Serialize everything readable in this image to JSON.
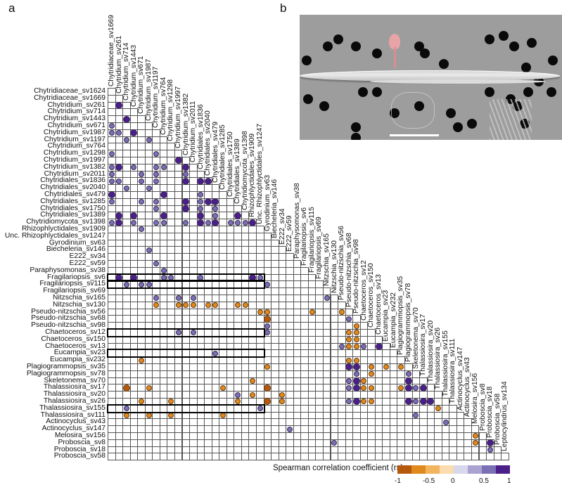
{
  "panels": {
    "a": "a",
    "b": "b"
  },
  "chart_data": {
    "type": "heatmap",
    "title": "",
    "subtype": "lower-triangular correlation matrix (circles)",
    "legend": {
      "title": "Spearman correlation coefficient (rs)",
      "ticks": [
        "-1",
        "-0.5",
        "0",
        "0.5",
        "1"
      ],
      "colors": [
        "#b5590f",
        "#e08a1e",
        "#f2b45c",
        "#fbdcae",
        "#d8d8ec",
        "#aaa3d2",
        "#7b6fb5",
        "#4a1f8a"
      ],
      "range": [
        -1,
        1
      ],
      "position": "bottom-right"
    },
    "rows": [
      "Chytridiaceae_sv1624",
      "Chytridiaceae_sv1669",
      "Chytridium_sv261",
      "Chytridium_sv714",
      "Chytridium_sv1443",
      "Chytridium_sv671",
      "Chytridium_sv1987",
      "Chytridium_sv1197",
      "Chytridium_sv764",
      "Chytridium_sv1298",
      "Chytridium_sv1997",
      "Chytridium_sv1382",
      "Chytridium_sv2011",
      "Chytridiales_sv1836",
      "Chytridiales_sv2040",
      "Chytridiales_sv479",
      "Chytridiales_sv1285",
      "Chytridiales_sv1750",
      "Chytridiales_sv1389",
      "Chytridiomycota_sv1398",
      "Rhizophlyctidales_sv1909",
      "Unc. Rhizophlyctidales_sv1247",
      "Gyrodinium_sv63",
      "Biecheleria_sv146",
      "E222_sv34",
      "E222_sv59",
      "Paraphysomonas_sv38",
      "Fragilariopsis_sv6",
      "Fragilariopsis_sv115",
      "Fragilariopsis_sv69",
      "Nitzschia_sv165",
      "Nitzschia_sv130",
      "Pseudo-nitzschia_sv56",
      "Pseudo-nitzschia_sv68",
      "Pseudo-nitzschia_sv98",
      "Chaetoceros_sv12",
      "Chaetoceros_sv150",
      "Chaetoceros_sv13",
      "Eucampia_sv23",
      "Eucampia_sv232",
      "Plagiogrammopsis_sv35",
      "Plagiogrammopsis_sv78",
      "Skeletonema_sv70",
      "Thalassiosira_sv17",
      "Thalassiosira_sv20",
      "Thalassiosira_sv26",
      "Thalassiosira_sv155",
      "Thalassiosira_sv111",
      "Actinocyclus_sv43",
      "Actinocyclus_sv147",
      "Melosira_sv156",
      "Proboscia_sv8",
      "Proboscia_sv18",
      "Proboscia_sv58"
    ],
    "columns": [
      "Chytridiaceae_sv1669",
      "Chytridium_sv261",
      "Chytridium_sv714",
      "Chytridium_sv1443",
      "Chytridium_sv671",
      "Chytridium_sv1987",
      "Chytridium_sv1197",
      "Chytridium_sv764",
      "Chytridium_sv1298",
      "Chytridium_sv1997",
      "Chytridium_sv1382",
      "Chytridium_sv2011",
      "Chytridiales_sv1836",
      "Chytridiales_sv2040",
      "Chytridiales_sv479",
      "Chytridiales_sv1285",
      "Chytridiales_sv1750",
      "Chytridiales_sv1389",
      "Chytridiomycota_sv1398",
      "Rhizophlyctidales_sv1909",
      "Unc. Rhizophlyctidales_sv1247",
      "Gyrodinium_sv63",
      "Biecheleria_sv146",
      "E222_sv34",
      "E222_sv59",
      "Paraphysomonas_sv38",
      "Fragilariopsis_sv6",
      "Fragilariopsis_sv115",
      "Fragilariopsis_sv69",
      "Nitzschia_sv165",
      "Nitzschia_sv130",
      "Pseudo-nitzschia_sv56",
      "Pseudo-nitzschia_sv68",
      "Pseudo-nitzschia_sv98",
      "Chaetoceros_sv12",
      "Chaetoceros_sv150",
      "Chaetoceros_sv13",
      "Eucampia_sv23",
      "Eucampia_sv232",
      "Plagiogrammopsis_sv35",
      "Plagiogrammopsis_sv78",
      "Skeletonema_sv70",
      "Thalassiosira_sv17",
      "Thalassiosira_sv20",
      "Thalassiosira_sv26",
      "Thalassiosira_sv155",
      "Thalassiosira_sv111",
      "Actinocyclus_sv147",
      "Actinocyclus_sv43",
      "Melosira_sv156",
      "Proboscia_sv8",
      "Proboscia_sv18",
      "Proboscia_sv58",
      "Leptocylindrus_sv134"
    ],
    "highlighted_rows": [
      "Fragilariopsis_sv6",
      "Fragilariopsis_sv115",
      "Chaetoceros_sv12",
      "Eucampia_sv23",
      "Thalassiosira_sv155"
    ],
    "points": [
      {
        "r": 2,
        "c": 1,
        "v": 0.9
      },
      {
        "r": 4,
        "c": 2,
        "v": 0.9
      },
      {
        "r": 5,
        "c": 0,
        "v": 0.6
      },
      {
        "r": 6,
        "c": 0,
        "v": 0.6
      },
      {
        "r": 6,
        "c": 1,
        "v": 0.6
      },
      {
        "r": 6,
        "c": 3,
        "v": 0.9
      },
      {
        "r": 7,
        "c": 2,
        "v": 0.6
      },
      {
        "r": 7,
        "c": 5,
        "v": 0.6
      },
      {
        "r": 9,
        "c": 0,
        "v": 0.6
      },
      {
        "r": 9,
        "c": 6,
        "v": 0.6
      },
      {
        "r": 10,
        "c": 9,
        "v": 0.9
      },
      {
        "r": 11,
        "c": 0,
        "v": 0.6
      },
      {
        "r": 11,
        "c": 1,
        "v": 0.9
      },
      {
        "r": 11,
        "c": 3,
        "v": 0.6
      },
      {
        "r": 11,
        "c": 6,
        "v": 0.6
      },
      {
        "r": 11,
        "c": 7,
        "v": 0.6
      },
      {
        "r": 11,
        "c": 10,
        "v": 0.9
      },
      {
        "r": 12,
        "c": 0,
        "v": 0.6
      },
      {
        "r": 12,
        "c": 4,
        "v": 0.6
      },
      {
        "r": 12,
        "c": 6,
        "v": 0.6
      },
      {
        "r": 12,
        "c": 10,
        "v": 0.6
      },
      {
        "r": 13,
        "c": 0,
        "v": 0.6
      },
      {
        "r": 13,
        "c": 1,
        "v": 0.6
      },
      {
        "r": 13,
        "c": 4,
        "v": 0.6
      },
      {
        "r": 13,
        "c": 6,
        "v": 0.6
      },
      {
        "r": 13,
        "c": 10,
        "v": 0.9
      },
      {
        "r": 13,
        "c": 12,
        "v": 0.9
      },
      {
        "r": 13,
        "c": 13,
        "v": 0.9
      },
      {
        "r": 14,
        "c": 2,
        "v": 0.6
      },
      {
        "r": 14,
        "c": 5,
        "v": 0.6
      },
      {
        "r": 15,
        "c": 0,
        "v": 0.9
      },
      {
        "r": 15,
        "c": 7,
        "v": 0.9
      },
      {
        "r": 15,
        "c": 12,
        "v": 0.6
      },
      {
        "r": 16,
        "c": 0,
        "v": 0.6
      },
      {
        "r": 16,
        "c": 4,
        "v": 0.6
      },
      {
        "r": 16,
        "c": 6,
        "v": 0.6
      },
      {
        "r": 16,
        "c": 10,
        "v": 0.9
      },
      {
        "r": 16,
        "c": 12,
        "v": 0.6
      },
      {
        "r": 16,
        "c": 13,
        "v": 0.9
      },
      {
        "r": 16,
        "c": 14,
        "v": 0.9
      },
      {
        "r": 17,
        "c": 6,
        "v": 0.6
      },
      {
        "r": 17,
        "c": 10,
        "v": 0.9
      },
      {
        "r": 17,
        "c": 12,
        "v": 0.6
      },
      {
        "r": 17,
        "c": 14,
        "v": 0.6
      },
      {
        "r": 18,
        "c": 1,
        "v": 0.9
      },
      {
        "r": 18,
        "c": 3,
        "v": 0.9
      },
      {
        "r": 18,
        "c": 7,
        "v": 0.9
      },
      {
        "r": 18,
        "c": 12,
        "v": 0.9
      },
      {
        "r": 18,
        "c": 14,
        "v": 0.6
      },
      {
        "r": 18,
        "c": 17,
        "v": 0.9
      },
      {
        "r": 19,
        "c": 0,
        "v": 0.6
      },
      {
        "r": 19,
        "c": 1,
        "v": 0.9
      },
      {
        "r": 19,
        "c": 3,
        "v": 0.6
      },
      {
        "r": 19,
        "c": 6,
        "v": 0.6
      },
      {
        "r": 19,
        "c": 7,
        "v": 0.6
      },
      {
        "r": 19,
        "c": 10,
        "v": 0.6
      },
      {
        "r": 19,
        "c": 12,
        "v": 0.9
      },
      {
        "r": 19,
        "c": 13,
        "v": 0.6
      },
      {
        "r": 19,
        "c": 14,
        "v": 0.9
      },
      {
        "r": 19,
        "c": 16,
        "v": 0.6
      },
      {
        "r": 19,
        "c": 17,
        "v": 0.6
      },
      {
        "r": 19,
        "c": 18,
        "v": 0.6
      },
      {
        "r": 19,
        "c": 19,
        "v": 0.9
      },
      {
        "r": 20,
        "c": 4,
        "v": 0.6
      },
      {
        "r": 23,
        "c": 5,
        "v": 0.6
      },
      {
        "r": 25,
        "c": 6,
        "v": 0.6
      },
      {
        "r": 26,
        "c": 7,
        "v": 0.6
      },
      {
        "r": 27,
        "c": 1,
        "v": 0.9
      },
      {
        "r": 27,
        "c": 3,
        "v": 0.9
      },
      {
        "r": 27,
        "c": 7,
        "v": 0.6
      },
      {
        "r": 27,
        "c": 8,
        "v": 0.6
      },
      {
        "r": 27,
        "c": 12,
        "v": 0.6
      },
      {
        "r": 27,
        "c": 19,
        "v": 0.9
      },
      {
        "r": 27,
        "c": 20,
        "v": 0.6
      },
      {
        "r": 28,
        "c": 2,
        "v": 0.6
      },
      {
        "r": 28,
        "c": 4,
        "v": 0.6
      },
      {
        "r": 28,
        "c": 5,
        "v": 0.6
      },
      {
        "r": 28,
        "c": 21,
        "v": 0.6
      },
      {
        "r": 30,
        "c": 6,
        "v": 0.6
      },
      {
        "r": 30,
        "c": 9,
        "v": 0.6
      },
      {
        "r": 30,
        "c": 11,
        "v": 0.6
      },
      {
        "r": 30,
        "c": 29,
        "v": 0.6
      },
      {
        "r": 31,
        "c": 6,
        "v": -0.6
      },
      {
        "r": 31,
        "c": 9,
        "v": -0.6
      },
      {
        "r": 31,
        "c": 10,
        "v": -0.6
      },
      {
        "r": 31,
        "c": 11,
        "v": -0.6
      },
      {
        "r": 31,
        "c": 13,
        "v": -0.6
      },
      {
        "r": 31,
        "c": 14,
        "v": -0.6
      },
      {
        "r": 31,
        "c": 17,
        "v": -0.6
      },
      {
        "r": 31,
        "c": 18,
        "v": -0.6
      },
      {
        "r": 32,
        "c": 20,
        "v": -0.6
      },
      {
        "r": 32,
        "c": 21,
        "v": -0.6
      },
      {
        "r": 32,
        "c": 27,
        "v": -0.6
      },
      {
        "r": 32,
        "c": 31,
        "v": -0.6
      },
      {
        "r": 33,
        "c": 21,
        "v": -0.8
      },
      {
        "r": 33,
        "c": 32,
        "v": 0.6
      },
      {
        "r": 34,
        "c": 21,
        "v": 0.6
      },
      {
        "r": 34,
        "c": 33,
        "v": -0.6
      },
      {
        "r": 35,
        "c": 9,
        "v": 0.6
      },
      {
        "r": 35,
        "c": 11,
        "v": 0.6
      },
      {
        "r": 35,
        "c": 21,
        "v": 0.6
      },
      {
        "r": 35,
        "c": 32,
        "v": -0.6
      },
      {
        "r": 35,
        "c": 33,
        "v": -0.6
      },
      {
        "r": 36,
        "c": 32,
        "v": -0.6
      },
      {
        "r": 36,
        "c": 33,
        "v": -0.6
      },
      {
        "r": 37,
        "c": 31,
        "v": 0.6
      },
      {
        "r": 37,
        "c": 32,
        "v": -0.6
      },
      {
        "r": 37,
        "c": 33,
        "v": -0.6
      },
      {
        "r": 37,
        "c": 34,
        "v": 0.6
      },
      {
        "r": 37,
        "c": 36,
        "v": 0.9
      },
      {
        "r": 38,
        "c": 14,
        "v": 0.6
      },
      {
        "r": 39,
        "c": 4,
        "v": -0.6
      },
      {
        "r": 39,
        "c": 32,
        "v": -0.6
      },
      {
        "r": 39,
        "c": 33,
        "v": -0.6
      },
      {
        "r": 40,
        "c": 21,
        "v": -0.6
      },
      {
        "r": 40,
        "c": 32,
        "v": 0.9
      },
      {
        "r": 40,
        "c": 33,
        "v": 0.9
      },
      {
        "r": 40,
        "c": 35,
        "v": -0.6
      },
      {
        "r": 40,
        "c": 37,
        "v": -0.6
      },
      {
        "r": 40,
        "c": 39,
        "v": -0.6
      },
      {
        "r": 41,
        "c": 33,
        "v": 0.6
      },
      {
        "r": 41,
        "c": 35,
        "v": -0.6
      },
      {
        "r": 41,
        "c": 40,
        "v": 0.6
      },
      {
        "r": 42,
        "c": 19,
        "v": -0.6
      },
      {
        "r": 42,
        "c": 32,
        "v": 0.6
      },
      {
        "r": 42,
        "c": 33,
        "v": 0.9
      },
      {
        "r": 42,
        "c": 34,
        "v": -0.6
      },
      {
        "r": 42,
        "c": 40,
        "v": 0.9
      },
      {
        "r": 43,
        "c": 2,
        "v": -0.8
      },
      {
        "r": 43,
        "c": 5,
        "v": -0.6
      },
      {
        "r": 43,
        "c": 15,
        "v": -0.6
      },
      {
        "r": 43,
        "c": 21,
        "v": -0.8
      },
      {
        "r": 43,
        "c": 32,
        "v": 0.6
      },
      {
        "r": 43,
        "c": 33,
        "v": 0.9
      },
      {
        "r": 43,
        "c": 34,
        "v": -0.6
      },
      {
        "r": 43,
        "c": 35,
        "v": -0.6
      },
      {
        "r": 43,
        "c": 39,
        "v": -0.6
      },
      {
        "r": 43,
        "c": 40,
        "v": 0.9
      },
      {
        "r": 43,
        "c": 41,
        "v": 0.6
      },
      {
        "r": 43,
        "c": 42,
        "v": 0.9
      },
      {
        "r": 44,
        "c": 17,
        "v": 0.6
      },
      {
        "r": 44,
        "c": 19,
        "v": -0.6
      },
      {
        "r": 44,
        "c": 23,
        "v": -0.6
      },
      {
        "r": 45,
        "c": 4,
        "v": -0.6
      },
      {
        "r": 45,
        "c": 8,
        "v": -0.6
      },
      {
        "r": 45,
        "c": 17,
        "v": -0.6
      },
      {
        "r": 45,
        "c": 21,
        "v": -0.8
      },
      {
        "r": 45,
        "c": 23,
        "v": -0.6
      },
      {
        "r": 45,
        "c": 32,
        "v": 0.6
      },
      {
        "r": 45,
        "c": 33,
        "v": 0.9
      },
      {
        "r": 45,
        "c": 34,
        "v": -0.6
      },
      {
        "r": 45,
        "c": 35,
        "v": -0.6
      },
      {
        "r": 45,
        "c": 40,
        "v": 0.9
      },
      {
        "r": 45,
        "c": 41,
        "v": 0.6
      },
      {
        "r": 45,
        "c": 42,
        "v": 0.9
      },
      {
        "r": 45,
        "c": 43,
        "v": 0.9
      },
      {
        "r": 46,
        "c": 2,
        "v": 0.6
      },
      {
        "r": 46,
        "c": 20,
        "v": 0.6
      },
      {
        "r": 46,
        "c": 44,
        "v": -0.6
      },
      {
        "r": 47,
        "c": 2,
        "v": -0.6
      },
      {
        "r": 47,
        "c": 5,
        "v": -0.6
      },
      {
        "r": 47,
        "c": 8,
        "v": -0.6
      },
      {
        "r": 47,
        "c": 15,
        "v": -0.6
      },
      {
        "r": 47,
        "c": 41,
        "v": 0.6
      },
      {
        "r": 48,
        "c": 45,
        "v": 0.6
      },
      {
        "r": 49,
        "c": 24,
        "v": 0.6
      },
      {
        "r": 50,
        "c": 49,
        "v": -0.6
      },
      {
        "r": 51,
        "c": 30,
        "v": 0.6
      },
      {
        "r": 51,
        "c": 49,
        "v": -0.6
      },
      {
        "r": 51,
        "c": 51,
        "v": 0.9
      },
      {
        "r": 52,
        "c": 51,
        "v": 0.6
      }
    ]
  },
  "image_b": {
    "description": "SEM micrograph of pennate diatom with attached pink-highlighted chytrid sporangium on porous filter",
    "scalebar": true
  }
}
